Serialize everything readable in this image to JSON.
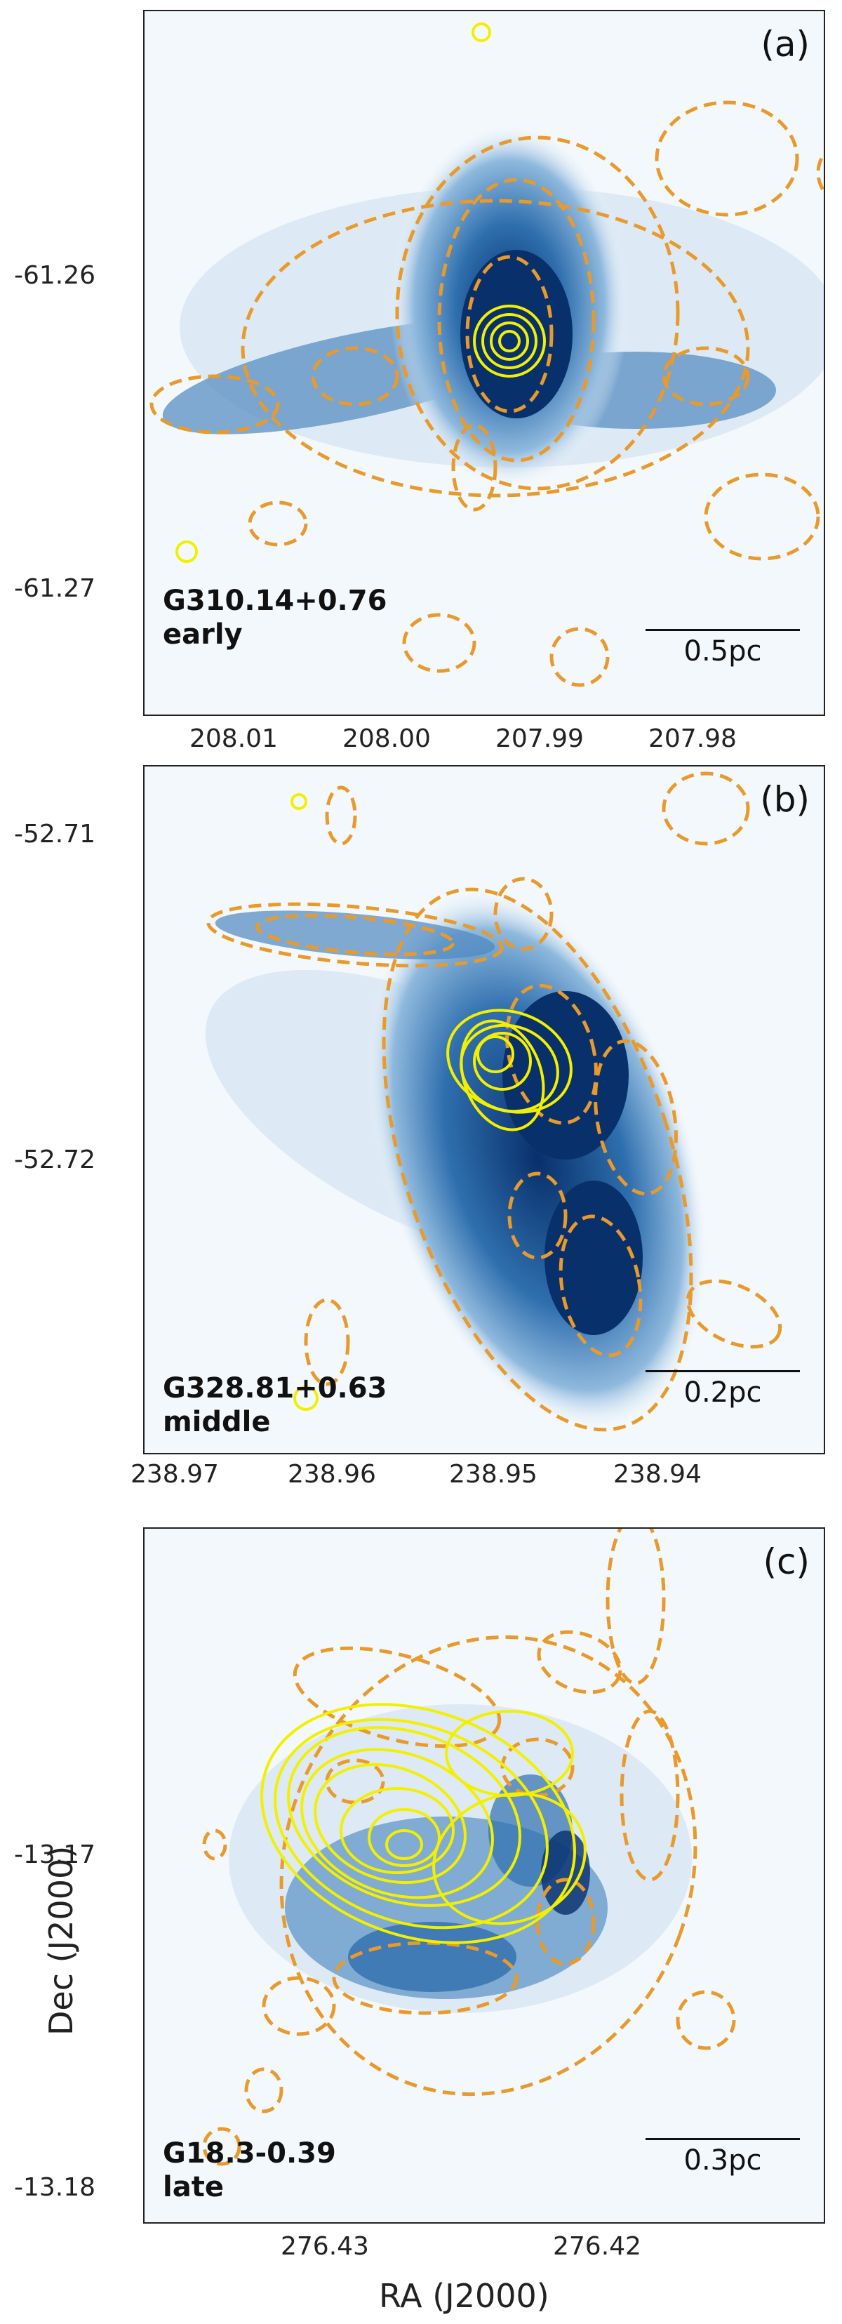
{
  "figure": {
    "xlabel": "RA (J2000)",
    "ylabel": "Dec (J2000)"
  },
  "panels": [
    {
      "label": "(a)",
      "source": "G310.14+0.76",
      "stage": "early",
      "scale": "0.5pc",
      "yticks": [
        "-61.26",
        "-61.27"
      ],
      "xticks": [
        "208.01",
        "208.00",
        "207.99",
        "207.98"
      ]
    },
    {
      "label": "(b)",
      "source": "G328.81+0.63",
      "stage": "middle",
      "scale": "0.2pc",
      "yticks": [
        "-52.71",
        "-52.72"
      ],
      "xticks": [
        "238.97",
        "238.96",
        "238.95",
        "238.94"
      ]
    },
    {
      "label": "(c)",
      "source": "G18.3-0.39",
      "stage": "late",
      "scale": "0.3pc",
      "yticks": [
        "-13.17",
        "-13.18"
      ],
      "xticks": [
        "276.43",
        "276.42"
      ]
    }
  ],
  "colors": {
    "ellipse": "#e89a2c",
    "contour": "#f2f000",
    "emission_dark": "#08306b",
    "emission_mid": "#2f6fae",
    "emission_light": "#9ec4e2"
  }
}
